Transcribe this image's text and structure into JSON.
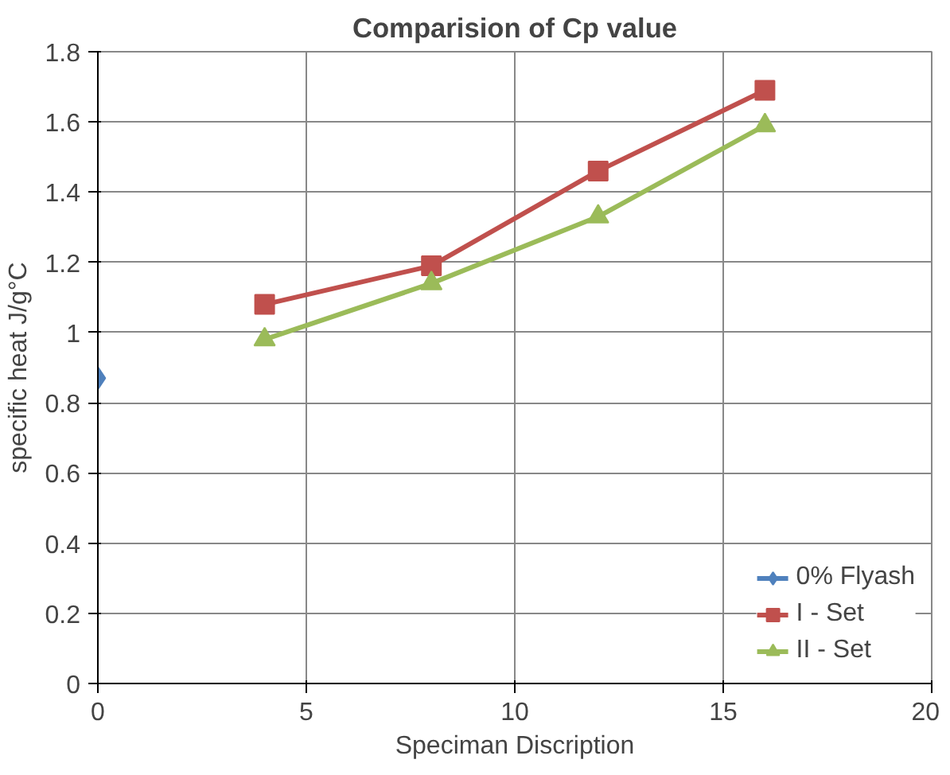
{
  "chart_data": {
    "type": "line",
    "title": "Comparision of Cp value",
    "xlabel": "Speciman Discription",
    "ylabel": "specific heat J/g°C",
    "xlim": [
      0,
      20
    ],
    "xticks": [
      0,
      5,
      10,
      15,
      20
    ],
    "ylim": [
      0,
      1.8
    ],
    "yticks": [
      0,
      0.2,
      0.4,
      0.6,
      0.8,
      1,
      1.2,
      1.4,
      1.6,
      1.8
    ],
    "grid": true,
    "legend": "bottom right",
    "series": [
      {
        "name": "0% Flyash",
        "color": "#4f81bd",
        "marker": "diamond",
        "x": [
          0
        ],
        "values": [
          0.87
        ]
      },
      {
        "name": "I - Set",
        "color": "#c0504d",
        "marker": "square",
        "x": [
          4,
          8,
          12,
          16
        ],
        "values": [
          1.08,
          1.19,
          1.46,
          1.69
        ]
      },
      {
        "name": "II - Set",
        "color": "#9bbb59",
        "marker": "triangle",
        "x": [
          4,
          8,
          12,
          16
        ],
        "values": [
          0.98,
          1.14,
          1.33,
          1.59
        ]
      }
    ]
  }
}
